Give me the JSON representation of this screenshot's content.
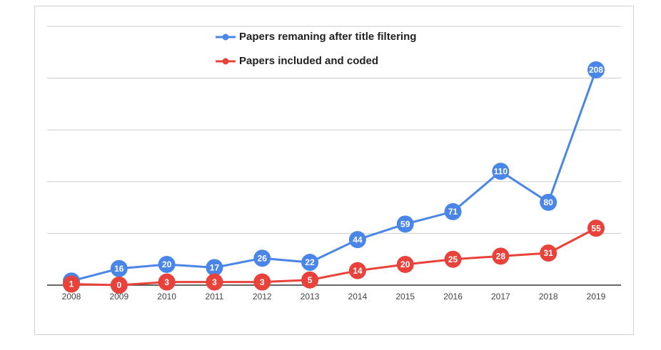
{
  "chart_data": {
    "type": "line",
    "categories": [
      "2008",
      "2009",
      "2010",
      "2011",
      "2012",
      "2013",
      "2014",
      "2015",
      "2016",
      "2017",
      "2018",
      "2019"
    ],
    "series": [
      {
        "name": "Papers remaning after title filtering",
        "color": "#4a86e8",
        "values": [
          4,
          16,
          20,
          17,
          26,
          22,
          44,
          59,
          71,
          110,
          80,
          208
        ]
      },
      {
        "name": "Papers included and coded",
        "color": "#e8423a",
        "values": [
          1,
          0,
          3,
          3,
          3,
          5,
          14,
          20,
          25,
          28,
          31,
          55
        ]
      }
    ],
    "ylim": [
      0,
      250
    ],
    "yticks": [
      0,
      50,
      100,
      150,
      200,
      250
    ],
    "grid": true,
    "legend": "top"
  }
}
